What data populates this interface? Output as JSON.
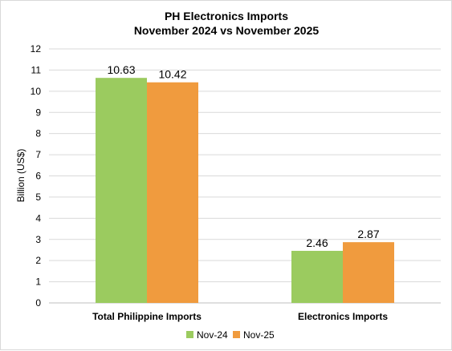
{
  "chart_data": {
    "type": "bar",
    "title_line1": "PH Electronics Imports",
    "title_line2": "November 2024 vs November 2025",
    "ylabel": "Billion (US$)",
    "xlabel": "",
    "ylim": [
      0,
      12
    ],
    "yticks": [
      0,
      1,
      2,
      3,
      4,
      5,
      6,
      7,
      8,
      9,
      10,
      11,
      12
    ],
    "grid": true,
    "legend_position": "bottom",
    "categories": [
      "Total Philippine Imports",
      "Electronics Imports"
    ],
    "series": [
      {
        "name": "Nov-24",
        "color": "#9BCB5F",
        "values": [
          10.63,
          2.46
        ],
        "labels": [
          "10.63",
          "2.46"
        ]
      },
      {
        "name": "Nov-25",
        "color": "#F09B3E",
        "values": [
          10.42,
          2.87
        ],
        "labels": [
          "10.42",
          "2.87"
        ]
      }
    ]
  }
}
